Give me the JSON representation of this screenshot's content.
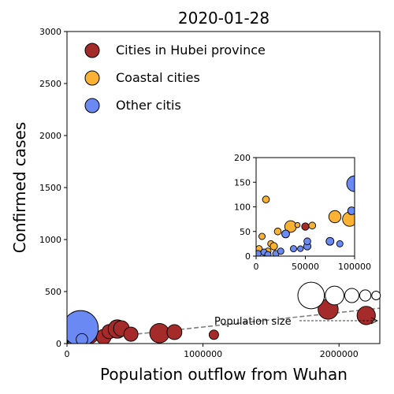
{
  "chart_data": {
    "type": "scatter",
    "title": "2020-01-28",
    "xlabel": "Population outflow from Wuhan",
    "ylabel": "Confirmed cases",
    "xlim": [
      0,
      2300000
    ],
    "ylim": [
      0,
      3000
    ],
    "xticks": [
      0,
      1000000,
      2000000
    ],
    "xtick_labels": [
      "0",
      "1000000",
      "2000000"
    ],
    "yticks": [
      0,
      500,
      1000,
      1500,
      2000,
      2500,
      3000
    ],
    "ytick_labels": [
      "0",
      "500",
      "1000",
      "1500",
      "2000",
      "2500",
      "3000"
    ],
    "grid": false,
    "legend_position": "top-left",
    "series": [
      {
        "name": "Cities in Hubei province",
        "color": "#a52a2a",
        "points": [
          {
            "x": 50000,
            "y": 60,
            "s": 80
          },
          {
            "x": 170000,
            "y": 80,
            "s": 120
          },
          {
            "x": 270000,
            "y": 65,
            "s": 100
          },
          {
            "x": 310000,
            "y": 115,
            "s": 90
          },
          {
            "x": 370000,
            "y": 140,
            "s": 150
          },
          {
            "x": 400000,
            "y": 145,
            "s": 110
          },
          {
            "x": 470000,
            "y": 90,
            "s": 90
          },
          {
            "x": 680000,
            "y": 100,
            "s": 170
          },
          {
            "x": 790000,
            "y": 110,
            "s": 100
          },
          {
            "x": 1080000,
            "y": 85,
            "s": 40
          },
          {
            "x": 1920000,
            "y": 330,
            "s": 180
          },
          {
            "x": 2200000,
            "y": 270,
            "s": 150
          }
        ]
      },
      {
        "name": "Coastal cities",
        "color": "#f9b233",
        "points": [
          {
            "x": 3000,
            "y": 15,
            "s": 60
          },
          {
            "x": 6000,
            "y": 40,
            "s": 60
          },
          {
            "x": 10000,
            "y": 115,
            "s": 70
          },
          {
            "x": 12000,
            "y": 10,
            "s": 60
          },
          {
            "x": 15000,
            "y": 25,
            "s": 60
          },
          {
            "x": 18000,
            "y": 20,
            "s": 80
          },
          {
            "x": 22000,
            "y": 50,
            "s": 70
          },
          {
            "x": 35000,
            "y": 60,
            "s": 200
          },
          {
            "x": 42000,
            "y": 63,
            "s": 40
          },
          {
            "x": 57000,
            "y": 62,
            "s": 70
          },
          {
            "x": 80000,
            "y": 80,
            "s": 220
          },
          {
            "x": 95000,
            "y": 75,
            "s": 300
          }
        ]
      },
      {
        "name": "Other citis",
        "color": "#6a89f2",
        "points": [
          {
            "x": 2000,
            "y": 5,
            "s": 60
          },
          {
            "x": 8000,
            "y": 8,
            "s": 60
          },
          {
            "x": 12000,
            "y": 3,
            "s": 60
          },
          {
            "x": 20000,
            "y": 5,
            "s": 60
          },
          {
            "x": 25000,
            "y": 10,
            "s": 60
          },
          {
            "x": 30000,
            "y": 45,
            "s": 90
          },
          {
            "x": 38000,
            "y": 15,
            "s": 60
          },
          {
            "x": 45000,
            "y": 15,
            "s": 50
          },
          {
            "x": 52000,
            "y": 20,
            "s": 80
          },
          {
            "x": 52000,
            "y": 30,
            "s": 70
          },
          {
            "x": 75000,
            "y": 30,
            "s": 90
          },
          {
            "x": 85000,
            "y": 25,
            "s": 60
          },
          {
            "x": 97000,
            "y": 92,
            "s": 90
          },
          {
            "x": 100000,
            "y": 147,
            "s": 560
          },
          {
            "x": 110000,
            "y": 40,
            "s": 60
          }
        ]
      }
    ],
    "trendline": {
      "style": "dashed",
      "color": "#808080",
      "from": [
        0,
        20
      ],
      "to": [
        2300000,
        340
      ]
    },
    "size_legend": {
      "label": "Population size",
      "sizes": [
        1400,
        700,
        400,
        250,
        150
      ]
    },
    "inset": {
      "xlim": [
        0,
        100000
      ],
      "ylim": [
        0,
        200
      ],
      "xticks": [
        0,
        50000,
        100000
      ],
      "xtick_labels": [
        "0",
        "50000",
        "100000"
      ],
      "yticks": [
        0,
        50,
        100,
        150,
        200
      ],
      "ytick_labels": [
        "0",
        "50",
        "100",
        "150",
        "200"
      ]
    }
  }
}
